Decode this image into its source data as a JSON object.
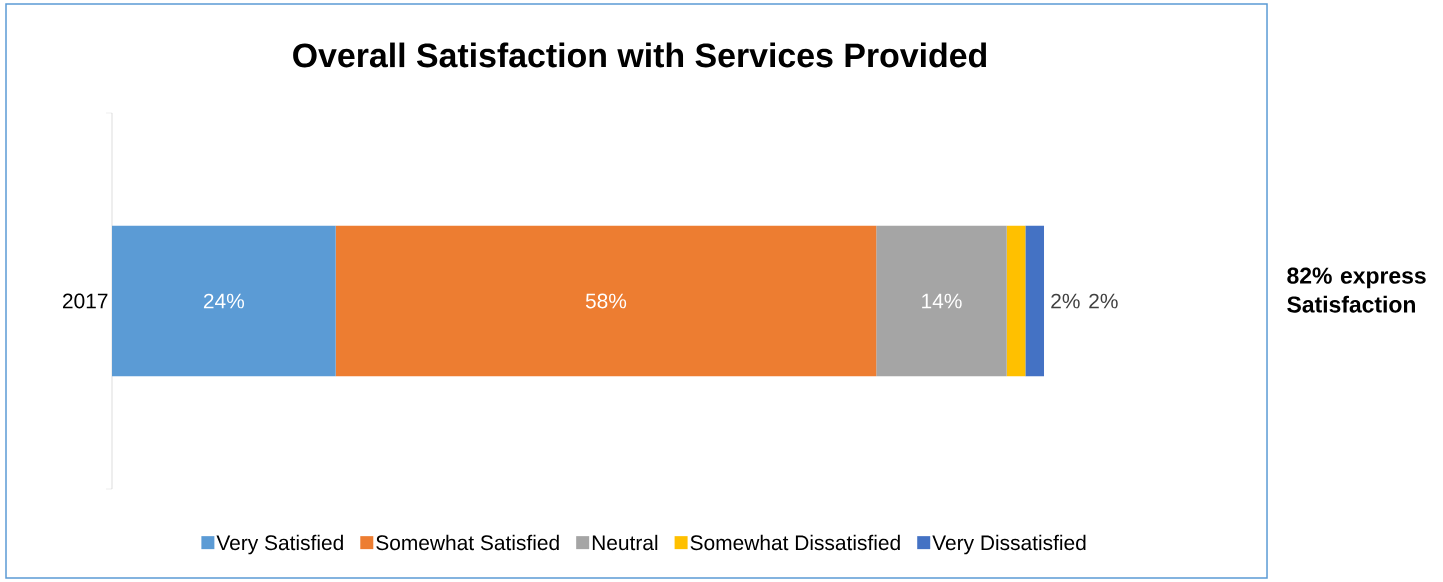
{
  "chart_data": {
    "type": "bar",
    "orientation": "horizontal",
    "stacked": true,
    "title": "Overall Satisfaction with Services Provided",
    "categories": [
      "2017"
    ],
    "series": [
      {
        "name": "Very Satisfied",
        "color": "#5b9bd5",
        "values": [
          24
        ],
        "value_labels": [
          "24%"
        ]
      },
      {
        "name": "Somewhat Satisfied",
        "color": "#ed7d31",
        "values": [
          58
        ],
        "value_labels": [
          "58%"
        ]
      },
      {
        "name": "Neutral",
        "color": "#a5a5a5",
        "values": [
          14
        ],
        "value_labels": [
          "14%"
        ]
      },
      {
        "name": "Somewhat Dissatisfied",
        "color": "#ffc000",
        "values": [
          2
        ],
        "value_labels": [
          "2%"
        ]
      },
      {
        "name": "Very Dissatisfied",
        "color": "#4472c4",
        "values": [
          2
        ],
        "value_labels": [
          "2%"
        ]
      }
    ],
    "legend": "bottom",
    "annotations": [
      "82% express Satisfaction"
    ]
  }
}
